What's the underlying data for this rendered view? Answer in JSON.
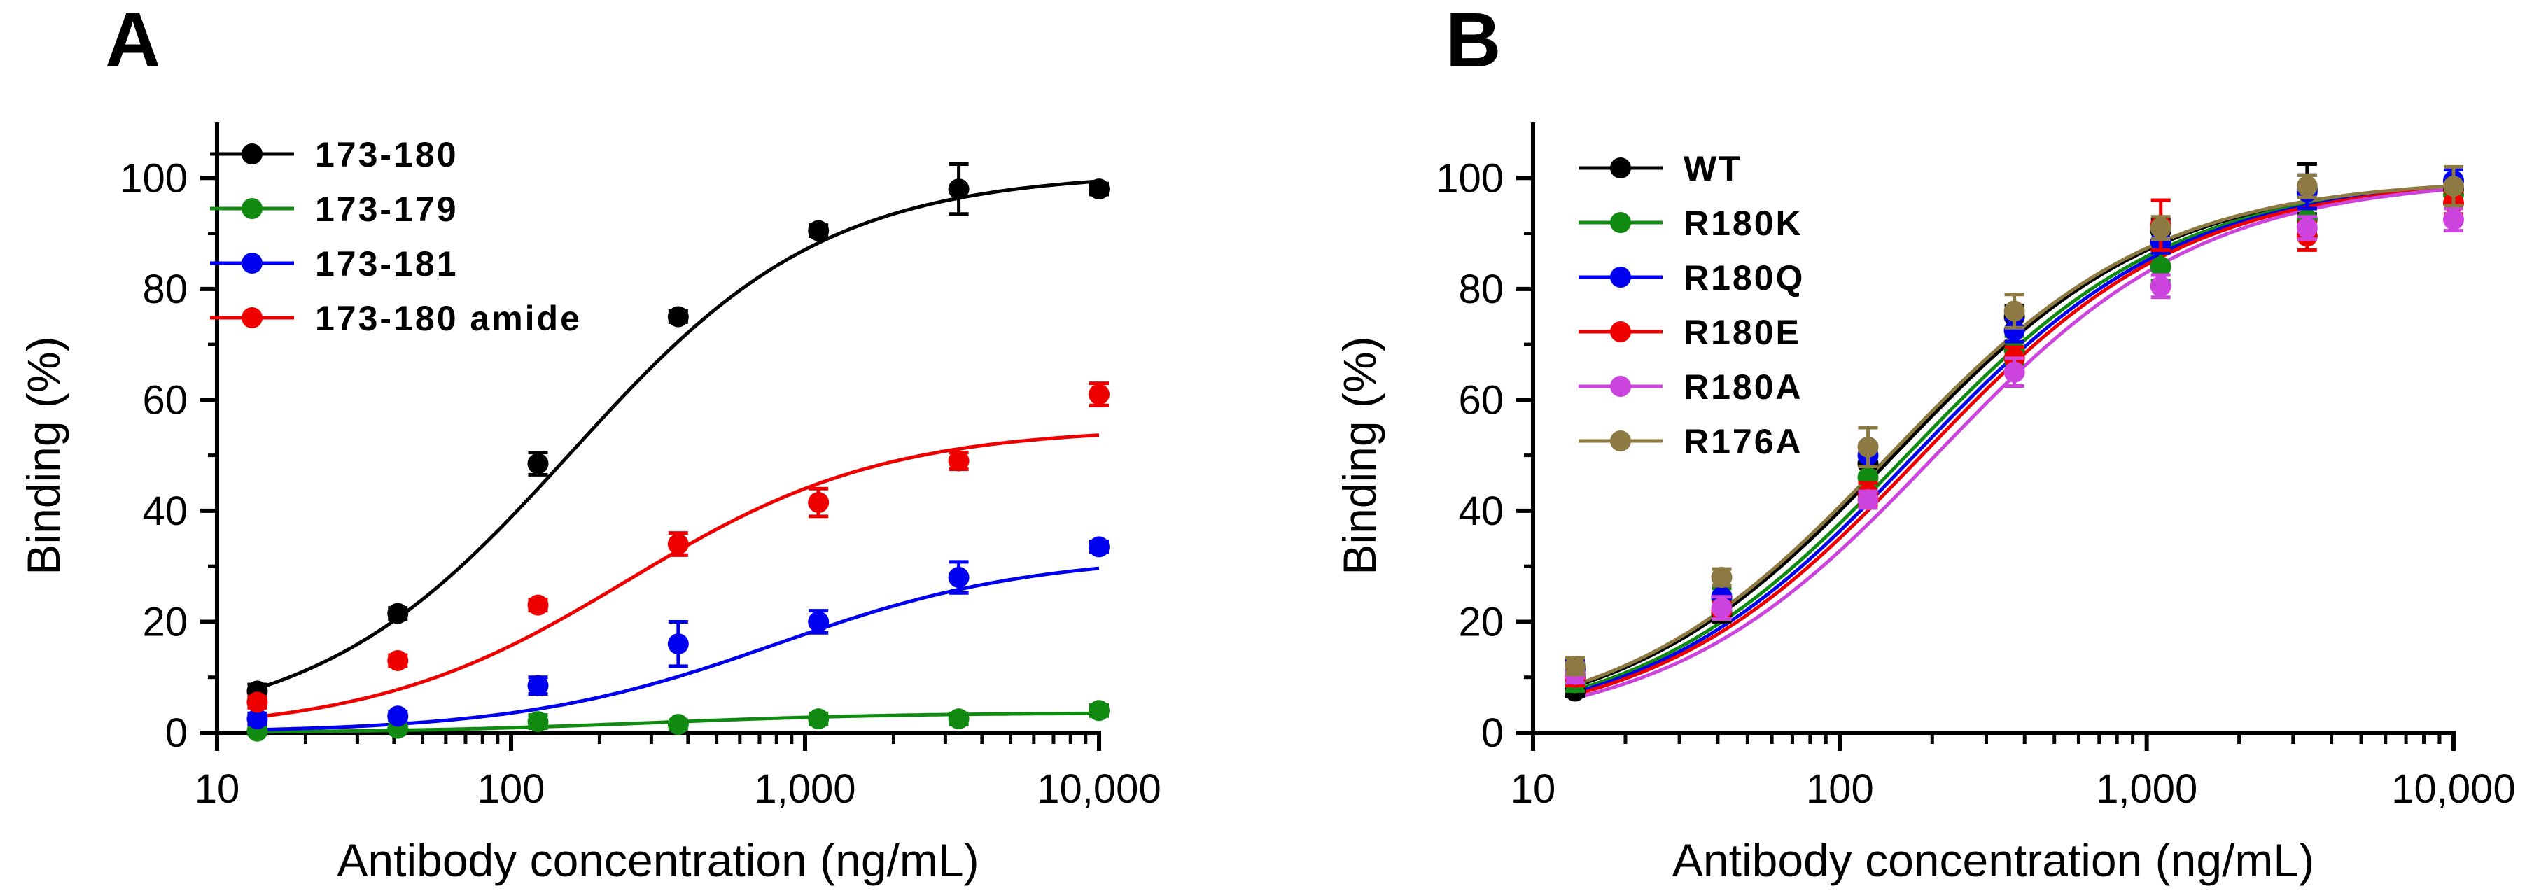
{
  "chart_data": [
    {
      "panel_label": "A",
      "type": "scatter",
      "xscale": "log",
      "xlim": [
        10,
        10000
      ],
      "ylim": [
        0,
        110
      ],
      "xticks": [
        10,
        100,
        1000,
        10000
      ],
      "xtick_labels": [
        "10",
        "100",
        "1,000",
        "10,000"
      ],
      "yticks": [
        0,
        20,
        40,
        60,
        80,
        100
      ],
      "ytick_labels": [
        "0",
        "20",
        "40",
        "60",
        "80",
        "100"
      ],
      "xlabel": "Antibody concentration (ng/mL)",
      "ylabel": "Binding (%)",
      "legend_position": "top-left",
      "x": [
        13.7,
        41.2,
        123.5,
        370.4,
        1111,
        3333,
        10000
      ],
      "series": [
        {
          "name": "173-180",
          "color": "#000000",
          "values": [
            7.5,
            21.5,
            48.5,
            75.0,
            90.5,
            98.0,
            98.0
          ],
          "errors": [
            1.2,
            1.0,
            2.0,
            1.0,
            1.0,
            4.5,
            1.0
          ],
          "fit": {
            "bottom": 0,
            "top": 101,
            "ec50": 160,
            "hill": 1.0
          }
        },
        {
          "name": "173-179",
          "color": "#118a11",
          "values": [
            0.3,
            0.8,
            2.0,
            1.5,
            2.5,
            2.5,
            4.0
          ],
          "errors": [
            0.5,
            0.5,
            1.2,
            0.8,
            1.0,
            1.0,
            1.0
          ],
          "fit": {
            "bottom": 0,
            "top": 3.6,
            "ec50": 300,
            "hill": 1.0
          }
        },
        {
          "name": "173-181",
          "color": "#0000ee",
          "values": [
            2.5,
            3.0,
            8.5,
            16.0,
            20.0,
            28.0,
            33.5
          ],
          "errors": [
            1.0,
            0.8,
            1.5,
            4.0,
            2.0,
            2.8,
            1.0
          ],
          "fit": {
            "bottom": 0,
            "top": 32,
            "ec50": 800,
            "hill": 1.0
          }
        },
        {
          "name": "173-180 amide",
          "color": "#ee0000",
          "values": [
            5.5,
            13.0,
            23.0,
            34.0,
            41.5,
            49.0,
            61.0
          ],
          "errors": [
            1.0,
            1.0,
            1.0,
            2.0,
            2.5,
            1.5,
            2.0
          ],
          "fit": {
            "bottom": 0,
            "top": 55,
            "ec50": 250,
            "hill": 1.0
          }
        }
      ]
    },
    {
      "panel_label": "B",
      "type": "scatter",
      "xscale": "log",
      "xlim": [
        10,
        10000
      ],
      "ylim": [
        0,
        110
      ],
      "xticks": [
        10,
        100,
        1000,
        10000
      ],
      "xtick_labels": [
        "10",
        "100",
        "1,000",
        "10,000"
      ],
      "yticks": [
        0,
        20,
        40,
        60,
        80,
        100
      ],
      "ytick_labels": [
        "0",
        "20",
        "40",
        "60",
        "80",
        "100"
      ],
      "xlabel": "Antibody concentration (ng/mL)",
      "ylabel": "Binding (%)",
      "legend_position": "top-left",
      "x": [
        13.7,
        41.2,
        123.5,
        370.4,
        1111,
        3333,
        10000
      ],
      "series": [
        {
          "name": "WT",
          "color": "#000000",
          "values": [
            7.5,
            21.5,
            48.5,
            75.0,
            90.5,
            98.0,
            98.0
          ],
          "errors": [
            1.0,
            1.5,
            2.0,
            2.0,
            2.0,
            4.5,
            1.5
          ],
          "fit": {
            "bottom": 0,
            "top": 100,
            "ec50": 150,
            "hill": 1.0
          }
        },
        {
          "name": "R180K",
          "color": "#118a11",
          "values": [
            9.0,
            24.0,
            46.0,
            69.0,
            84.0,
            92.5,
            97.0
          ],
          "errors": [
            1.5,
            2.0,
            2.0,
            2.5,
            2.5,
            2.0,
            2.0
          ],
          "fit": {
            "bottom": 0,
            "top": 100,
            "ec50": 165,
            "hill": 1.0
          }
        },
        {
          "name": "R180Q",
          "color": "#0000ee",
          "values": [
            11.5,
            24.5,
            50.0,
            72.5,
            88.5,
            97.5,
            99.5
          ],
          "errors": [
            1.5,
            2.0,
            2.0,
            2.0,
            2.0,
            3.0,
            2.0
          ],
          "fit": {
            "bottom": 0,
            "top": 100,
            "ec50": 175,
            "hill": 1.0
          }
        },
        {
          "name": "R180E",
          "color": "#ee0000",
          "values": [
            10.0,
            22.0,
            43.0,
            67.5,
            91.5,
            89.5,
            95.5
          ],
          "errors": [
            1.5,
            1.5,
            2.0,
            2.0,
            4.5,
            2.5,
            2.0
          ],
          "fit": {
            "bottom": 0,
            "top": 100,
            "ec50": 185,
            "hill": 1.0
          }
        },
        {
          "name": "R180A",
          "color": "#cc44dd",
          "values": [
            10.5,
            22.5,
            42.0,
            65.0,
            80.5,
            91.0,
            92.5
          ],
          "errors": [
            1.5,
            2.0,
            1.5,
            2.5,
            2.0,
            2.0,
            2.0
          ],
          "fit": {
            "bottom": 0,
            "top": 100,
            "ec50": 205,
            "hill": 1.0
          }
        },
        {
          "name": "R176A",
          "color": "#8c7a42",
          "values": [
            12.0,
            28.0,
            51.5,
            76.0,
            91.0,
            98.5,
            98.5
          ],
          "errors": [
            1.5,
            1.5,
            3.5,
            3.0,
            2.0,
            2.0,
            3.5
          ],
          "fit": {
            "bottom": 0,
            "top": 100,
            "ec50": 145,
            "hill": 1.0
          }
        }
      ]
    }
  ]
}
